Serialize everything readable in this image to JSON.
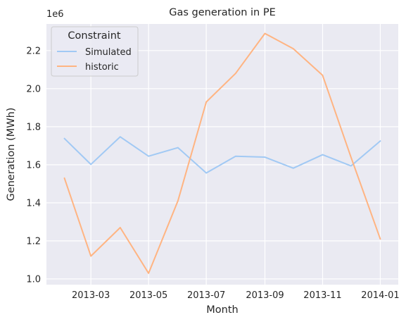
{
  "chart_data": {
    "type": "line",
    "title": "Gas generation in PE",
    "xlabel": "Month",
    "ylabel": "Generation (MWh)",
    "y_scale_note": "1e6",
    "x": [
      "2013-02-01",
      "2013-03-01",
      "2013-04-01",
      "2013-05-01",
      "2013-06-01",
      "2013-07-01",
      "2013-08-01",
      "2013-09-01",
      "2013-10-01",
      "2013-11-01",
      "2013-12-01",
      "2014-01-01"
    ],
    "xticks": [
      "2013-03",
      "2013-05",
      "2013-07",
      "2013-09",
      "2013-11",
      "2014-01"
    ],
    "yticks": [
      "1.0",
      "1.2",
      "1.4",
      "1.6",
      "1.8",
      "2.0",
      "2.2"
    ],
    "ylim": [
      0.97,
      2.34
    ],
    "xlim": [
      "2013-01-13",
      "2014-01-20"
    ],
    "grid": true,
    "legend": {
      "title": "Constraint",
      "placement": "top-left"
    },
    "series": [
      {
        "name": "Simulated",
        "color": "#a1c9f4",
        "values": [
          1.738,
          1.602,
          1.747,
          1.645,
          1.69,
          1.557,
          1.645,
          1.64,
          1.582,
          1.653,
          1.594,
          1.725
        ]
      },
      {
        "name": "historic",
        "color": "#ffb482",
        "values": [
          1.53,
          1.12,
          1.27,
          1.03,
          1.41,
          1.93,
          2.08,
          2.29,
          2.21,
          2.07,
          1.64,
          1.21
        ]
      }
    ]
  }
}
